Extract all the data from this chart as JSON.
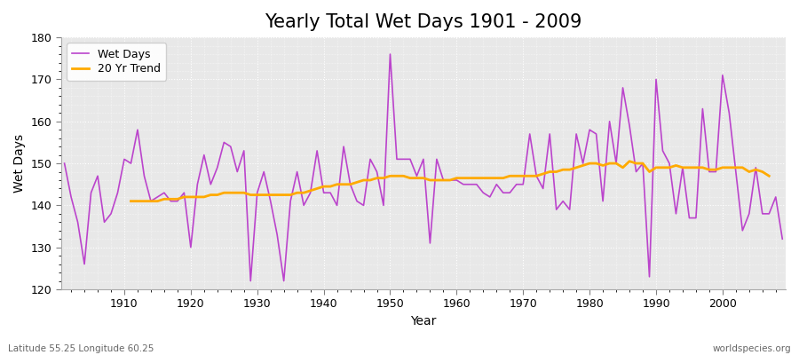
{
  "title": "Yearly Total Wet Days 1901 - 2009",
  "xlabel": "Year",
  "ylabel": "Wet Days",
  "footnote_left": "Latitude 55.25 Longitude 60.25",
  "footnote_right": "worldspecies.org",
  "years": [
    1901,
    1902,
    1903,
    1904,
    1905,
    1906,
    1907,
    1908,
    1909,
    1910,
    1911,
    1912,
    1913,
    1914,
    1915,
    1916,
    1917,
    1918,
    1919,
    1920,
    1921,
    1922,
    1923,
    1924,
    1925,
    1926,
    1927,
    1928,
    1929,
    1930,
    1931,
    1932,
    1933,
    1934,
    1935,
    1936,
    1937,
    1938,
    1939,
    1940,
    1941,
    1942,
    1943,
    1944,
    1945,
    1946,
    1947,
    1948,
    1949,
    1950,
    1951,
    1952,
    1953,
    1954,
    1955,
    1956,
    1957,
    1958,
    1959,
    1960,
    1961,
    1962,
    1963,
    1964,
    1965,
    1966,
    1967,
    1968,
    1969,
    1970,
    1971,
    1972,
    1973,
    1974,
    1975,
    1976,
    1977,
    1978,
    1979,
    1980,
    1981,
    1982,
    1983,
    1984,
    1985,
    1986,
    1987,
    1988,
    1989,
    1990,
    1991,
    1992,
    1993,
    1994,
    1995,
    1996,
    1997,
    1998,
    1999,
    2000,
    2001,
    2002,
    2003,
    2004,
    2005,
    2006,
    2007,
    2008,
    2009
  ],
  "wet_days": [
    150,
    142,
    136,
    126,
    143,
    147,
    136,
    138,
    143,
    151,
    150,
    158,
    147,
    141,
    142,
    143,
    141,
    141,
    143,
    130,
    145,
    152,
    145,
    149,
    155,
    154,
    148,
    153,
    122,
    143,
    148,
    141,
    133,
    122,
    141,
    148,
    140,
    143,
    153,
    143,
    143,
    140,
    154,
    145,
    141,
    140,
    151,
    148,
    140,
    176,
    151,
    151,
    151,
    147,
    151,
    131,
    151,
    146,
    146,
    146,
    145,
    145,
    145,
    143,
    142,
    145,
    143,
    143,
    145,
    145,
    157,
    147,
    144,
    157,
    139,
    141,
    139,
    157,
    150,
    158,
    157,
    141,
    160,
    150,
    168,
    159,
    148,
    150,
    123,
    170,
    153,
    150,
    138,
    149,
    137,
    137,
    163,
    148,
    148,
    171,
    162,
    148,
    134,
    138,
    149,
    138,
    138,
    142,
    132
  ],
  "trend": [
    null,
    null,
    null,
    null,
    null,
    null,
    null,
    null,
    null,
    null,
    141,
    141,
    141,
    141,
    141,
    141.5,
    141.5,
    141.5,
    142,
    142,
    142,
    142,
    142.5,
    142.5,
    143,
    143,
    143,
    143,
    142.5,
    142.5,
    142.5,
    142.5,
    142.5,
    142.5,
    142.5,
    143,
    143,
    143.5,
    144,
    144.5,
    144.5,
    145,
    145,
    145,
    145.5,
    146,
    146,
    146.5,
    146.5,
    147,
    147,
    147,
    146.5,
    146.5,
    146.5,
    146,
    146,
    146,
    146,
    146.5,
    146.5,
    146.5,
    146.5,
    146.5,
    146.5,
    146.5,
    146.5,
    147,
    147,
    147,
    147,
    147,
    147.5,
    148,
    148,
    148.5,
    148.5,
    149,
    149.5,
    150,
    150,
    149.5,
    150,
    150,
    149,
    150.5,
    150,
    150,
    148,
    149,
    149,
    149,
    149.5,
    149,
    149,
    149,
    149,
    148.5,
    148.5,
    149,
    149,
    149,
    149,
    148,
    148.5,
    148,
    147,
    null,
    null
  ],
  "wet_days_color": "#bb44cc",
  "trend_color": "#ffaa00",
  "bg_color": "#ffffff",
  "plot_bg_color": "#e8e8e8",
  "ylim": [
    120,
    180
  ],
  "yticks": [
    120,
    130,
    140,
    150,
    160,
    170,
    180
  ],
  "xticks": [
    1910,
    1920,
    1930,
    1940,
    1950,
    1960,
    1970,
    1980,
    1990,
    2000
  ],
  "linewidth_wet": 1.2,
  "linewidth_trend": 2.0,
  "title_fontsize": 15,
  "axis_label_fontsize": 10,
  "tick_fontsize": 9,
  "legend_fontsize": 9
}
